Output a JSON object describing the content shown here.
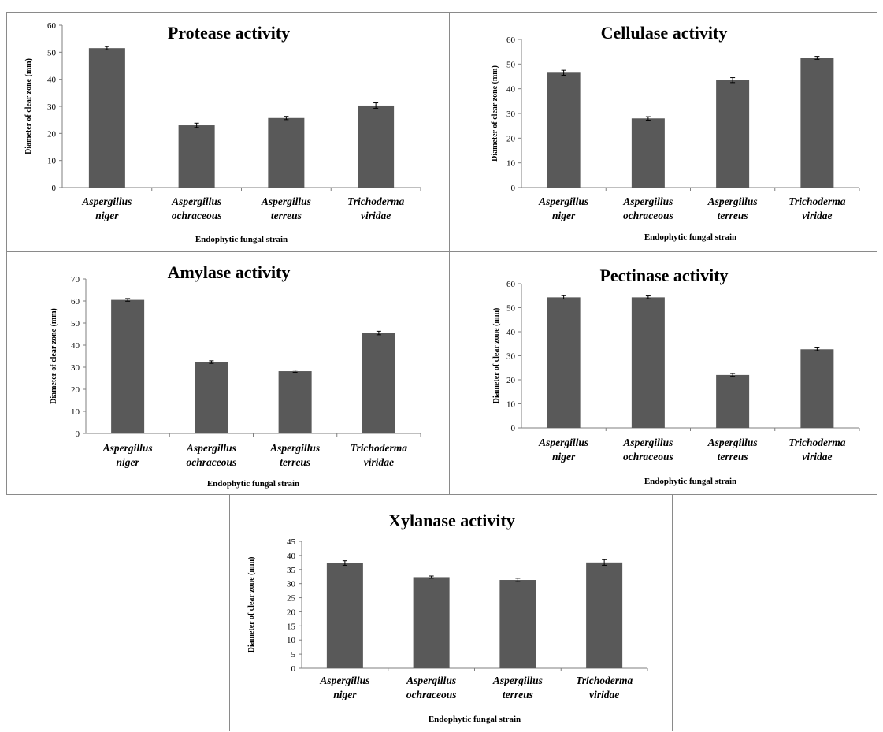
{
  "chart_data": [
    {
      "type": "bar",
      "title": "Protease activity",
      "xlabel": "Endophytic  fungal strain",
      "ylabel": "Diameter of clear zone (mm)",
      "categories": [
        [
          "Aspergillus",
          "niger"
        ],
        [
          "Aspergillus",
          "ochraceous"
        ],
        [
          "Aspergillus",
          "terreus"
        ],
        [
          "Trichoderma",
          "viridae"
        ]
      ],
      "values": [
        51.5,
        23,
        25.7,
        30.3
      ],
      "errors": [
        0.6,
        0.8,
        0.6,
        1.0
      ],
      "ylim": [
        0,
        60
      ],
      "yticks": [
        0,
        10,
        20,
        30,
        40,
        50,
        60
      ],
      "bar_color": "#595959"
    },
    {
      "type": "bar",
      "title": "Cellulase  activity",
      "xlabel": "Endophytic  fungal strain",
      "ylabel": "Diameter of clear zone (mm)",
      "categories": [
        [
          "Aspergillus",
          "niger"
        ],
        [
          "Aspergillus",
          "ochraceous"
        ],
        [
          "Aspergillus",
          "terreus"
        ],
        [
          "Trichoderma",
          "viridae"
        ]
      ],
      "values": [
        46.5,
        28,
        43.5,
        52.5
      ],
      "errors": [
        1.0,
        0.7,
        1.0,
        0.6
      ],
      "ylim": [
        0,
        60
      ],
      "yticks": [
        0,
        10,
        20,
        30,
        40,
        50,
        60
      ],
      "bar_color": "#595959"
    },
    {
      "type": "bar",
      "title": "Amylase activity",
      "xlabel": "Endophytic  fungal strain",
      "ylabel": "Diameter of clear zone (mm)",
      "categories": [
        [
          "Aspergillus",
          "niger"
        ],
        [
          "Aspergillus",
          "ochraceous"
        ],
        [
          "Aspergillus",
          "terreus"
        ],
        [
          "Trichoderma",
          "viridae"
        ]
      ],
      "values": [
        60.5,
        32.3,
        28.2,
        45.5
      ],
      "errors": [
        0.6,
        0.6,
        0.5,
        0.8
      ],
      "ylim": [
        0,
        70
      ],
      "yticks": [
        0,
        10,
        20,
        30,
        40,
        50,
        60,
        70
      ],
      "bar_color": "#595959"
    },
    {
      "type": "bar",
      "title": "Pectinase activity",
      "xlabel": "Endophytic  fungal strain",
      "ylabel": "Diameter of clear zone (mm)",
      "categories": [
        [
          "Aspergillus",
          "niger"
        ],
        [
          "Aspergillus",
          "ochraceous"
        ],
        [
          "Aspergillus",
          "terreus"
        ],
        [
          "Trichoderma",
          "viridae"
        ]
      ],
      "values": [
        54.3,
        54.3,
        22,
        32.7
      ],
      "errors": [
        0.7,
        0.6,
        0.6,
        0.6
      ],
      "ylim": [
        0,
        60
      ],
      "yticks": [
        0,
        10,
        20,
        30,
        40,
        50,
        60
      ],
      "bar_color": "#595959"
    },
    {
      "type": "bar",
      "title": "Xylanase activity",
      "xlabel": "Endophytic  fungal strain",
      "ylabel": "Diameter of clear zone (mm)",
      "categories": [
        [
          "Aspergillus",
          "niger"
        ],
        [
          "Aspergillus",
          "ochraceous"
        ],
        [
          "Aspergillus",
          "terreus"
        ],
        [
          "Trichoderma",
          "viridae"
        ]
      ],
      "values": [
        37.3,
        32.3,
        31.3,
        37.5
      ],
      "errors": [
        0.8,
        0.4,
        0.6,
        1.0
      ],
      "ylim": [
        0,
        45
      ],
      "yticks": [
        0,
        5,
        10,
        15,
        20,
        25,
        30,
        35,
        40,
        45
      ],
      "bar_color": "#595959"
    }
  ]
}
